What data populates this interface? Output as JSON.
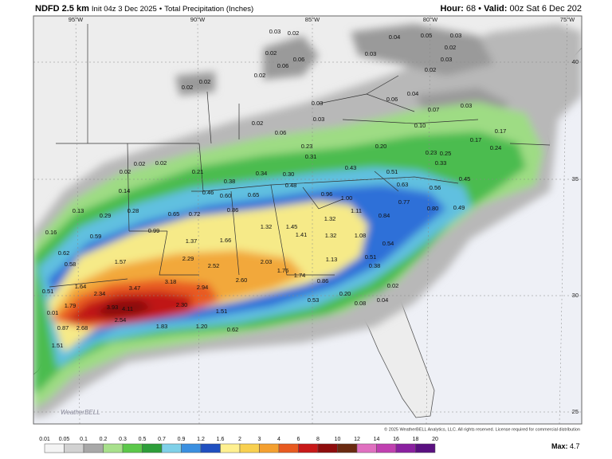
{
  "header": {
    "model": "NDFD 2.5 km",
    "init": "Init 04z 3 Dec 2025",
    "sep": "•",
    "product": "Total Precipitation (Inches)",
    "hour_label": "Hour:",
    "hour": "68",
    "valid_label": "Valid:",
    "valid": "00z Sat 6 Dec 202"
  },
  "graticule": {
    "lon": [
      "95°W",
      "90°W",
      "85°W",
      "80°W",
      "75°W"
    ],
    "lat": [
      "40",
      "35",
      "30",
      "25"
    ]
  },
  "map": {
    "labels": [
      "0.03",
      "0.02",
      "0.02",
      "0.06",
      "0.06",
      "0.02",
      "0.03",
      "0.04",
      "0.05",
      "0.03",
      "0.02",
      "0.03",
      "0.02",
      "0.02",
      "0.02",
      "0.03",
      "0.06",
      "0.04",
      "0.07",
      "0.03",
      "0.03",
      "0.02",
      "0.06",
      "0.10",
      "0.17",
      "0.17",
      "0.24",
      "0.23",
      "0.31",
      "0.20",
      "0.23",
      "0.25",
      "0.33",
      "0.02",
      "0.02",
      "0.02",
      "0.21",
      "0.34",
      "0.30",
      "0.43",
      "0.51",
      "0.63",
      "0.56",
      "0.45",
      "0.38",
      "0.46",
      "0.60",
      "0.65",
      "0.48",
      "0.96",
      "1.00",
      "0.77",
      "0.80",
      "0.49",
      "0.14",
      "0.13",
      "0.29",
      "0.28",
      "0.65",
      "0.72",
      "0.86",
      "1.11",
      "0.84",
      "1.32",
      "1.32",
      "1.45",
      "1.41",
      "1.08",
      "0.16",
      "0.59",
      "0.99",
      "1.37",
      "1.66",
      "1.32",
      "0.54",
      "0.62",
      "0.58",
      "1.57",
      "2.29",
      "2.52",
      "2.03",
      "1.13",
      "0.51",
      "0.38",
      "1.76",
      "1.74",
      "0.86",
      "1.64",
      "3.47",
      "3.18",
      "2.94",
      "2.60",
      "0.02",
      "0.20",
      "0.53",
      "0.04",
      "0.08",
      "0.51",
      "2.34",
      "1.79",
      "3.93",
      "4.11",
      "2.30",
      "1.51",
      "0.01",
      "2.68",
      "2.54",
      "1.83",
      "1.20",
      "0.62",
      "1.51",
      "0.87"
    ]
  },
  "logo": "WeatherBELL",
  "copyright": "© 2025 WeatherBELL Analytics, LLC. All rights reserved. License required for commercial distribution",
  "scale": {
    "labels": [
      "0.01",
      "0.05",
      "0.1",
      "0.2",
      "0.3",
      "0.5",
      "0.7",
      "0.9",
      "1.2",
      "1.6",
      "2",
      "3",
      "4",
      "6",
      "8",
      "10",
      "12",
      "14",
      "16",
      "18",
      "20"
    ],
    "colors": [
      "#f4f4f4",
      "#d2d2d2",
      "#a8a8a8",
      "#a8e08c",
      "#5cc84a",
      "#2e9e3a",
      "#7fd0e8",
      "#3a8fe0",
      "#1f4fc0",
      "#fff090",
      "#f8d050",
      "#f4a030",
      "#e85a20",
      "#c81818",
      "#8e0c0c",
      "#6a2a10",
      "#e070c0",
      "#c040b0",
      "#8a20a0",
      "#5a1080"
    ],
    "max_label": "Max:",
    "max": "4.7"
  }
}
